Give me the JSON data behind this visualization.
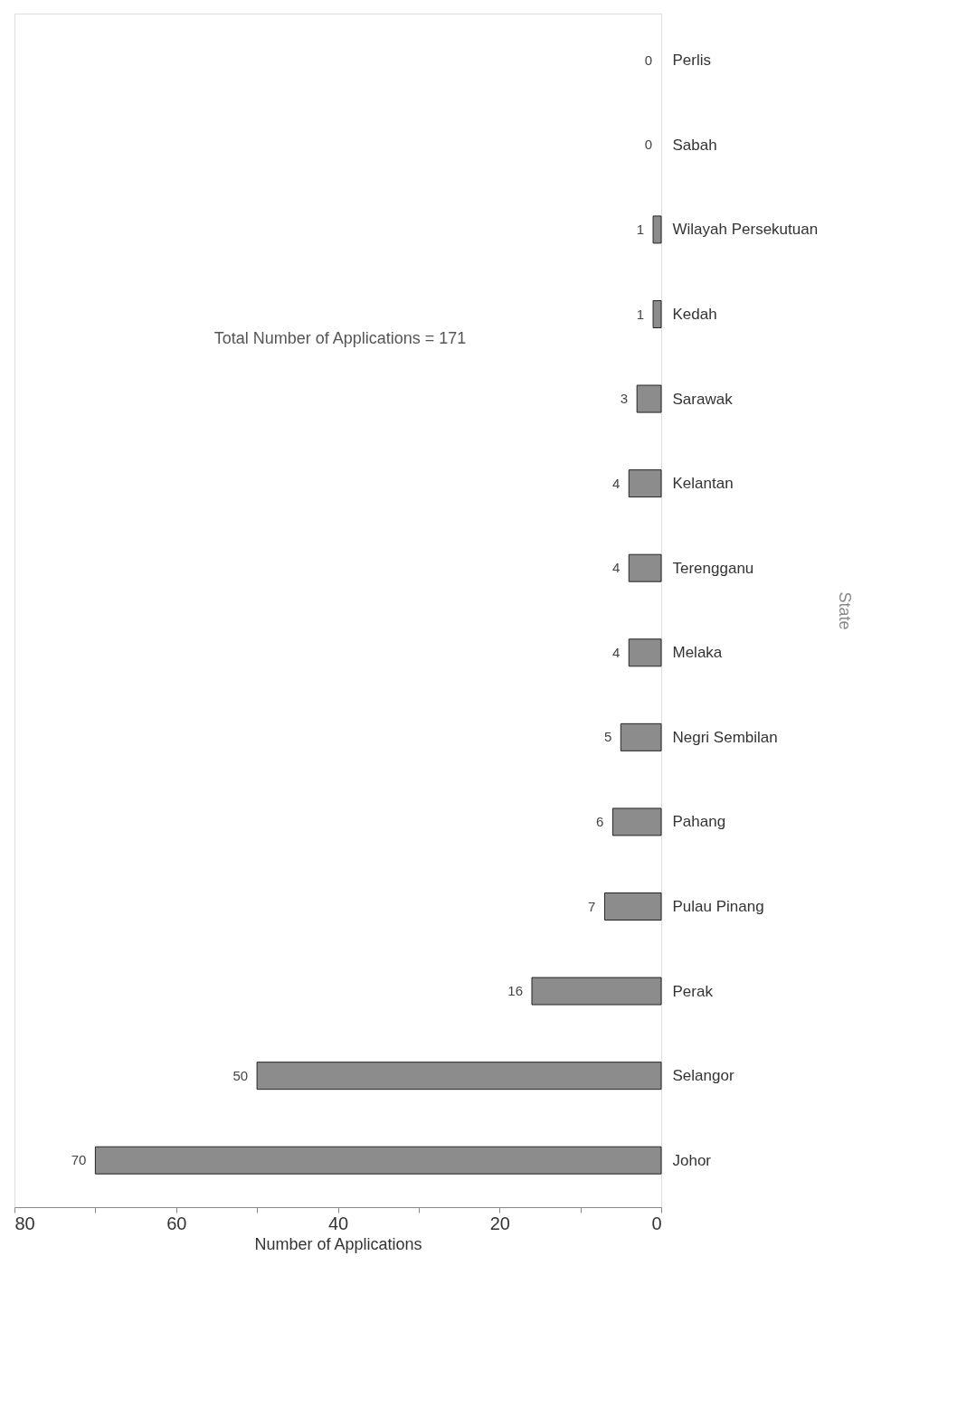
{
  "chart_data": {
    "type": "bar",
    "orientation": "horizontal",
    "xlabel": "Number of Applications",
    "ylabel": "State",
    "categories": [
      "Perlis",
      "Sabah",
      "Wilayah Persekutuan",
      "Kedah",
      "Sarawak",
      "Kelantan",
      "Terengganu",
      "Melaka",
      "Negri Sembilan",
      "Pahang",
      "Pulau Pinang",
      "Perak",
      "Selangor",
      "Johor"
    ],
    "values": [
      0,
      0,
      1,
      1,
      3,
      4,
      4,
      4,
      5,
      6,
      7,
      16,
      50,
      70
    ],
    "color": "#8c8c8c",
    "xlim": [
      80,
      0
    ],
    "xticks": [
      0,
      {
        "value": 10,
        "label": null
      },
      20,
      {
        "value": 30,
        "label": null
      },
      40,
      {
        "value": 50,
        "label": null
      },
      60,
      {
        "value": 70,
        "label": null
      },
      80
    ],
    "data_labels": true,
    "annotations": [
      "Total Number of Applications = 171"
    ]
  }
}
